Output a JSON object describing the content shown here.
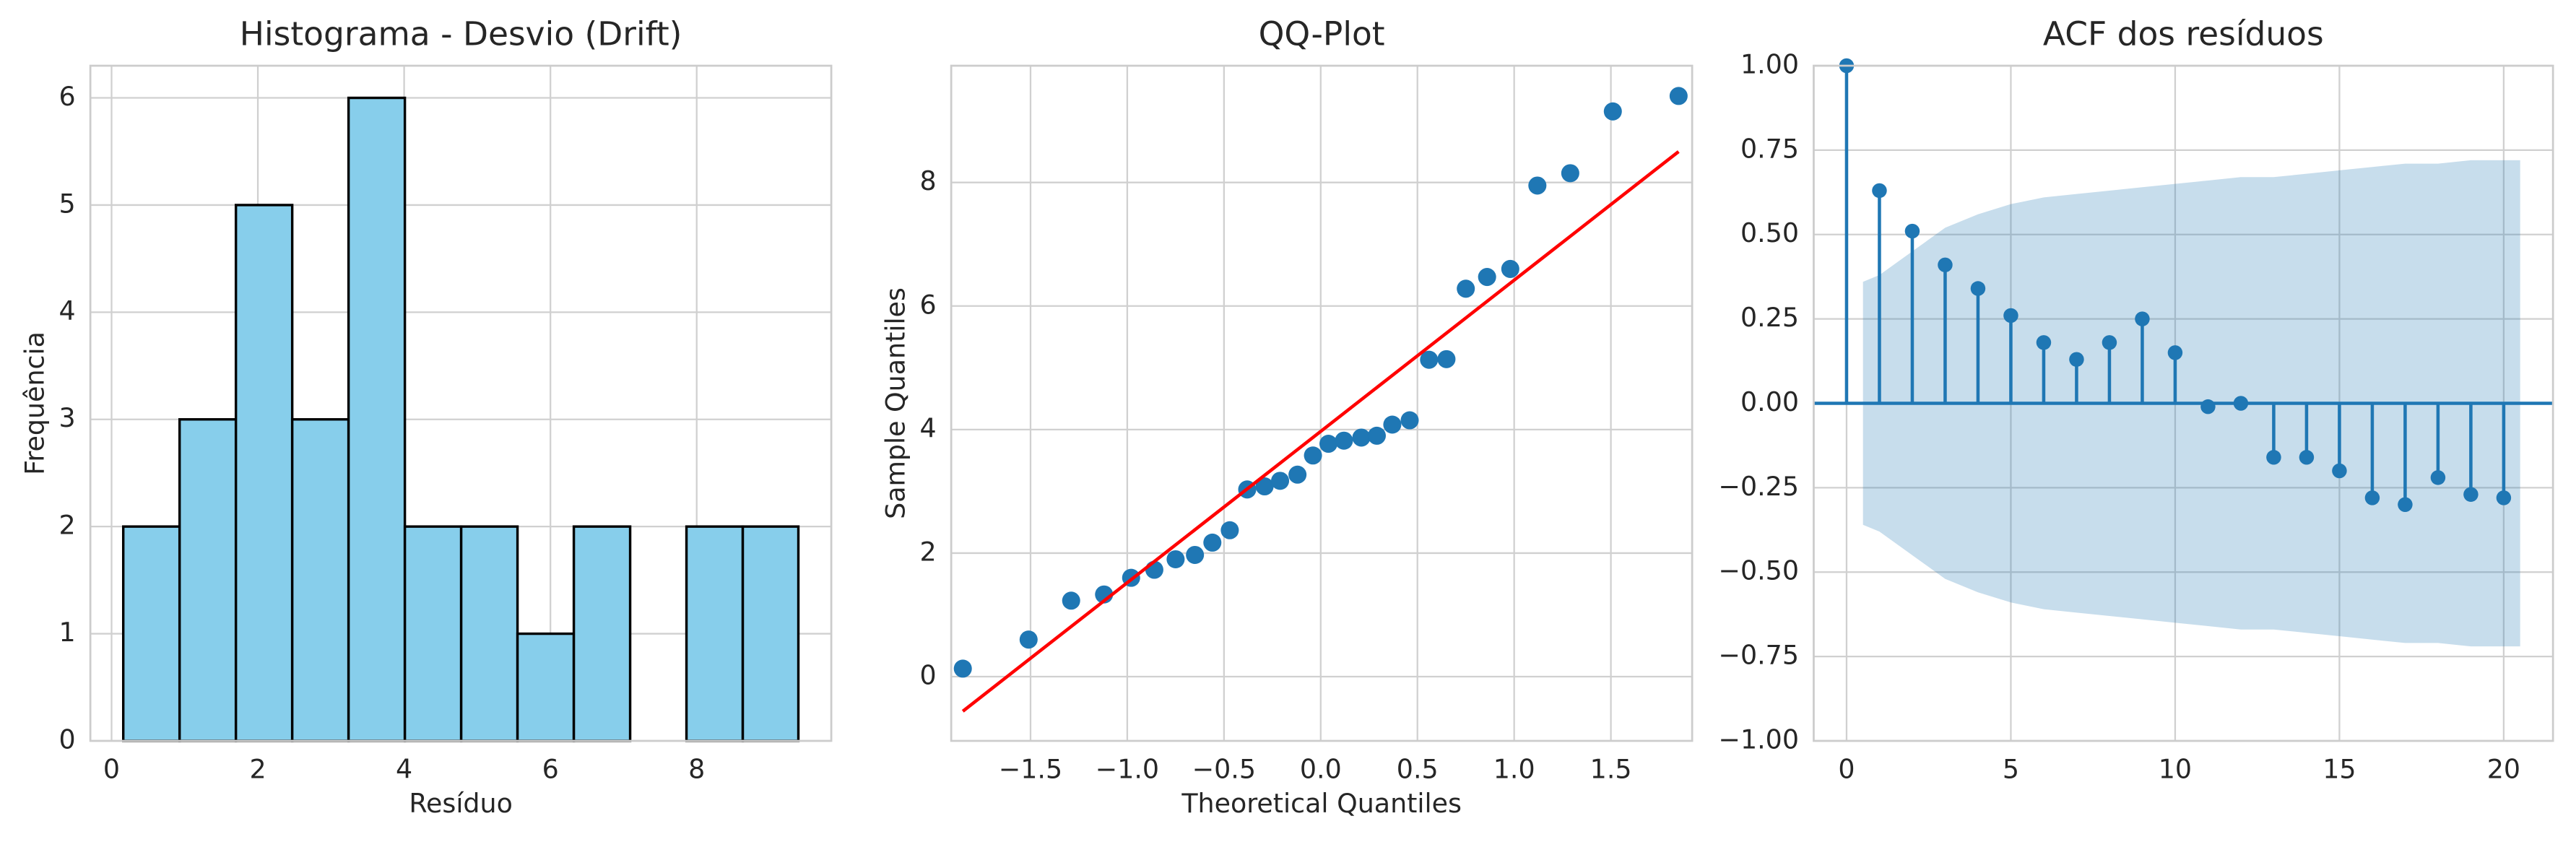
{
  "chart_data": [
    {
      "type": "histogram",
      "title": "Histograma - Desvio (Drift)",
      "x_label": "Resíduo",
      "y_label": "Frequência",
      "bins": [
        0.16,
        0.93,
        1.7,
        2.47,
        3.24,
        4.01,
        4.78,
        5.55,
        6.32,
        7.09,
        7.86,
        8.63,
        9.39
      ],
      "values": [
        2,
        3,
        5,
        3,
        6,
        2,
        2,
        1,
        2,
        0,
        2,
        2
      ],
      "color": "#87ceeb",
      "edge_color": "#000000",
      "xlim": [
        -0.29,
        9.84
      ],
      "ylim": [
        0,
        6.3
      ],
      "xticks": [
        0,
        2,
        4,
        6,
        8
      ],
      "yticks": [
        0,
        1,
        2,
        3,
        4,
        5,
        6
      ],
      "grid": true
    },
    {
      "type": "scatter",
      "title": "QQ-Plot",
      "x_label": "Theoretical Quantiles",
      "y_label": "Sample Quantiles",
      "x": [
        -1.85,
        -1.51,
        -1.29,
        -1.12,
        -0.98,
        -0.86,
        -0.75,
        -0.65,
        -0.56,
        -0.47,
        -0.38,
        -0.29,
        -0.21,
        -0.12,
        -0.04,
        0.04,
        0.12,
        0.21,
        0.29,
        0.37,
        0.46,
        0.56,
        0.65,
        0.75,
        0.86,
        0.98,
        1.12,
        1.29,
        1.51,
        1.85
      ],
      "values": [
        0.13,
        0.6,
        1.23,
        1.33,
        1.6,
        1.73,
        1.9,
        1.97,
        2.17,
        2.37,
        3.03,
        3.08,
        3.17,
        3.27,
        3.58,
        3.77,
        3.82,
        3.87,
        3.9,
        4.08,
        4.15,
        5.13,
        5.14,
        6.28,
        6.47,
        6.6,
        7.95,
        8.15,
        9.15,
        9.4
      ],
      "color": "#1f77b4",
      "fit_line": {
        "x": [
          -1.85,
          1.85
        ],
        "y": [
          -0.56,
          8.5
        ],
        "color": "#ff0000"
      },
      "xlim": [
        -1.91,
        1.92
      ],
      "ylim": [
        -1.04,
        9.89
      ],
      "xticks": [
        {
          "value": -1.5,
          "label": "−1.5"
        },
        {
          "value": -1,
          "label": "−1.0"
        },
        {
          "value": -0.5,
          "label": "−0.5"
        },
        {
          "value": 0,
          "label": "0.0"
        },
        {
          "value": 0.5,
          "label": "0.5"
        },
        {
          "value": 1,
          "label": "1.0"
        },
        {
          "value": 1.5,
          "label": "1.5"
        }
      ],
      "yticks": [
        0,
        2,
        4,
        6,
        8
      ],
      "grid": true
    },
    {
      "type": "stem",
      "title": "ACF dos resíduos",
      "x": [
        0,
        1,
        2,
        3,
        4,
        5,
        6,
        7,
        8,
        9,
        10,
        11,
        12,
        13,
        14,
        15,
        16,
        17,
        18,
        19,
        20
      ],
      "values": [
        1,
        0.63,
        0.51,
        0.41,
        0.34,
        0.26,
        0.18,
        0.13,
        0.18,
        0.25,
        0.15,
        -0.01,
        0.0,
        -0.16,
        -0.16,
        -0.2,
        -0.28,
        -0.3,
        -0.22,
        -0.27,
        -0.28
      ],
      "color": "#1f77b4",
      "band": {
        "x": [
          0.5,
          1,
          2,
          3,
          4,
          5,
          6,
          7,
          8,
          9,
          10,
          11,
          12,
          13,
          14,
          15,
          16,
          17,
          18,
          19,
          20,
          20.5
        ],
        "upper": [
          0.36,
          0.38,
          0.45,
          0.52,
          0.56,
          0.59,
          0.61,
          0.62,
          0.63,
          0.64,
          0.65,
          0.66,
          0.67,
          0.67,
          0.68,
          0.69,
          0.7,
          0.71,
          0.71,
          0.72,
          0.72,
          0.72
        ],
        "lower": [
          -0.36,
          -0.38,
          -0.45,
          -0.52,
          -0.56,
          -0.59,
          -0.61,
          -0.62,
          -0.63,
          -0.64,
          -0.65,
          -0.66,
          -0.67,
          -0.67,
          -0.68,
          -0.69,
          -0.7,
          -0.71,
          -0.71,
          -0.72,
          -0.72,
          -0.72
        ],
        "color": "#1f77b4"
      },
      "xlim": [
        -1,
        21.5
      ],
      "ylim": [
        -1,
        1
      ],
      "xticks": [
        0,
        5,
        10,
        15,
        20
      ],
      "yticks": [
        {
          "value": -1,
          "label": "−1.00"
        },
        {
          "value": -0.75,
          "label": "−0.75"
        },
        {
          "value": -0.5,
          "label": "−0.50"
        },
        {
          "value": -0.25,
          "label": "−0.25"
        },
        {
          "value": 0,
          "label": "0.00"
        },
        {
          "value": 0.25,
          "label": "0.25"
        },
        {
          "value": 0.5,
          "label": "0.50"
        },
        {
          "value": 0.75,
          "label": "0.75"
        },
        {
          "value": 1,
          "label": "1.00"
        }
      ],
      "grid": true
    }
  ]
}
